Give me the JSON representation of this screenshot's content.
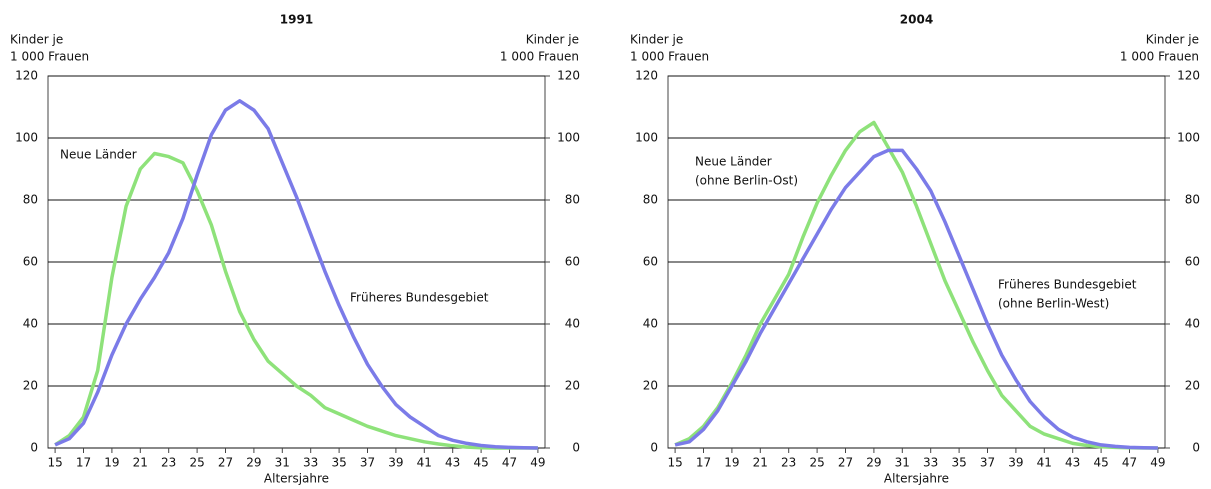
{
  "chart_data": [
    {
      "type": "line",
      "title": "1991",
      "xlabel": "Altersjahre",
      "ylabel": [
        "Kinder je",
        "1 000 Frauen"
      ],
      "y2label": [
        "Kinder je",
        "1 000 Frauen"
      ],
      "x": [
        15,
        16,
        17,
        18,
        19,
        20,
        21,
        22,
        23,
        24,
        25,
        26,
        27,
        28,
        29,
        30,
        31,
        32,
        33,
        34,
        35,
        36,
        37,
        38,
        39,
        40,
        41,
        42,
        43,
        44,
        45,
        46,
        47,
        48,
        49
      ],
      "xlim": [
        14.5,
        49.5
      ],
      "xticks": [
        15,
        17,
        19,
        21,
        23,
        25,
        27,
        29,
        31,
        33,
        35,
        37,
        39,
        41,
        43,
        45,
        47,
        49
      ],
      "ylim": [
        0,
        120
      ],
      "yticks": [
        0,
        20,
        40,
        60,
        80,
        100,
        120
      ],
      "y2lim": [
        0,
        120
      ],
      "y2ticks": [
        0,
        20,
        40,
        60,
        80,
        100,
        120
      ],
      "grid": true,
      "series": [
        {
          "name": "Neue Länder",
          "color": "#8ee27a",
          "values": [
            1,
            4,
            10,
            25,
            55,
            78,
            90,
            95,
            94,
            92,
            83,
            72,
            57,
            44,
            35,
            28,
            24,
            20,
            17,
            13,
            11,
            9,
            7,
            5.5,
            4,
            3,
            2,
            1.3,
            0.7,
            0.3,
            0.1,
            0,
            0,
            0,
            0
          ]
        },
        {
          "name": "Früheres Bundesgebiet",
          "color": "#7b7be8",
          "values": [
            1,
            3,
            8,
            18,
            30,
            40,
            48,
            55,
            63,
            74,
            88,
            101,
            109,
            112,
            109,
            103,
            92,
            81,
            69,
            57,
            46,
            36,
            27,
            20,
            14,
            10,
            7,
            4,
            2.5,
            1.5,
            0.8,
            0.4,
            0.2,
            0.1,
            0
          ]
        }
      ]
    },
    {
      "type": "line",
      "title": "2004",
      "xlabel": "Altersjahre",
      "ylabel": [
        "Kinder je",
        "1 000 Frauen"
      ],
      "y2label": [
        "Kinder je",
        "1 000 Frauen"
      ],
      "x": [
        15,
        16,
        17,
        18,
        19,
        20,
        21,
        22,
        23,
        24,
        25,
        26,
        27,
        28,
        29,
        30,
        31,
        32,
        33,
        34,
        35,
        36,
        37,
        38,
        39,
        40,
        41,
        42,
        43,
        44,
        45,
        46,
        47,
        48,
        49
      ],
      "xlim": [
        14.5,
        49.5
      ],
      "xticks": [
        15,
        17,
        19,
        21,
        23,
        25,
        27,
        29,
        31,
        33,
        35,
        37,
        39,
        41,
        43,
        45,
        47,
        49
      ],
      "ylim": [
        0,
        120
      ],
      "yticks": [
        0,
        20,
        40,
        60,
        80,
        100,
        120
      ],
      "y2lim": [
        0,
        120
      ],
      "y2ticks": [
        0,
        20,
        40,
        60,
        80,
        100,
        120
      ],
      "grid": true,
      "series": [
        {
          "name": "Neue Länder",
          "note": "(ohne Berlin-Ost)",
          "color": "#8ee27a",
          "values": [
            1,
            3,
            7,
            13,
            21,
            30,
            40,
            48,
            56,
            68,
            79,
            88,
            96,
            102,
            105,
            97,
            89,
            78,
            66,
            54,
            44,
            34,
            25,
            17,
            12,
            7,
            4.5,
            3,
            1.5,
            0.8,
            0.4,
            0.2,
            0.1,
            0,
            0
          ]
        },
        {
          "name": "Früheres Bundesgebiet",
          "note": "(ohne Berlin-West)",
          "color": "#7b7be8",
          "values": [
            1,
            2,
            6,
            12,
            20,
            28,
            37,
            45,
            53,
            61,
            69,
            77,
            84,
            89,
            94,
            96,
            96,
            90,
            83,
            73,
            62,
            51,
            40,
            30,
            22,
            15,
            10,
            6,
            3.5,
            2,
            1,
            0.5,
            0.2,
            0.1,
            0
          ]
        }
      ]
    }
  ]
}
